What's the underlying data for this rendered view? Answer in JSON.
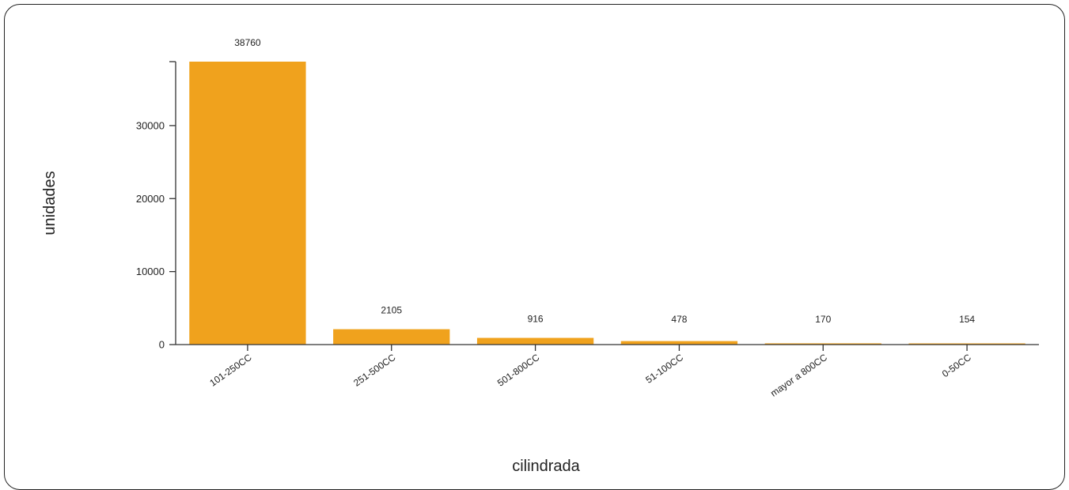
{
  "chart_data": {
    "type": "bar",
    "xlabel": "cilindrada",
    "ylabel": "unidades",
    "categories": [
      "101-250CC",
      "251-500CC",
      "501-800CC",
      "51-100CC",
      "mayor a 800CC",
      "0-50CC"
    ],
    "values": [
      38760,
      2105,
      916,
      478,
      170,
      154
    ],
    "yticks": [
      0,
      10000,
      20000,
      30000
    ],
    "ylim": [
      0,
      38760
    ],
    "bar_color": "#f0a21d",
    "axis_color": "#333333",
    "grid": false,
    "legend": "none"
  }
}
